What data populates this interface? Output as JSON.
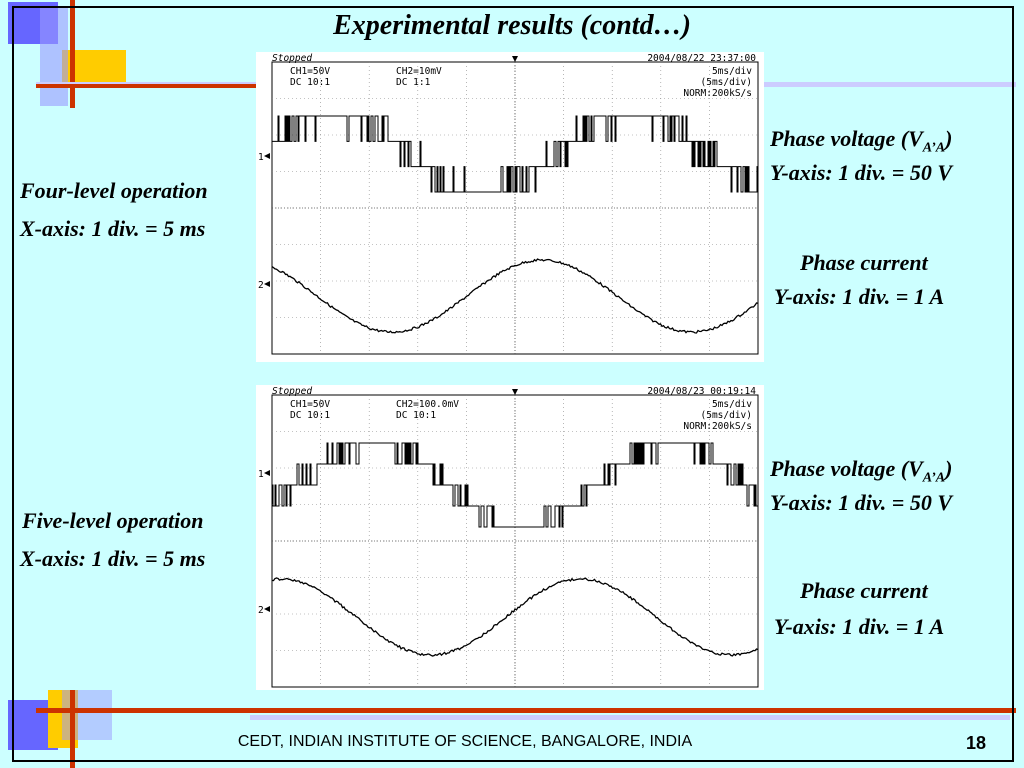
{
  "slide": {
    "title": "Experimental results (contd…)",
    "footer": "CEDT, INDIAN INSTITUTE OF SCIENCE, BANGALORE, INDIA",
    "page_number": "18",
    "background_color": "#ccffff",
    "accent_colors": {
      "blue": "#6666ff",
      "yellow": "#ffcc00",
      "red_line": "#cc3300"
    }
  },
  "panels": [
    {
      "operation_label": "Four-level operation",
      "x_axis_label": "X-axis: 1 div. = 5 ms",
      "voltage_label_prefix": "Phase voltage (V",
      "voltage_label_sub": "A’A",
      "voltage_label_suffix": ")",
      "voltage_scale": "Y-axis: 1 div. = 50 V",
      "current_label": "Phase current",
      "current_scale": "Y-axis: 1 div. = 1 A",
      "scope": {
        "status": "Stopped",
        "datetime": "2004/08/22  23:37:00",
        "ch1": "CH1=50V",
        "ch1_coupling": "DC  10:1",
        "ch2": "CH2=10mV",
        "ch2_coupling": "DC  1:1",
        "timebase": "5ms/div",
        "timebase2": "(5ms/div)",
        "mode": "NORM:200kS/s",
        "ch1_marker": "1",
        "ch2_marker": "2"
      }
    },
    {
      "operation_label": "Five-level operation",
      "x_axis_label": "X-axis: 1 div. = 5 ms",
      "voltage_label_prefix": "Phase voltage (V",
      "voltage_label_sub": "A’A",
      "voltage_label_suffix": ")",
      "voltage_scale": "Y-axis: 1 div. = 50 V",
      "current_label": "Phase current",
      "current_scale": "Y-axis: 1 div. = 1 A",
      "scope": {
        "status": "Stopped",
        "datetime": "2004/08/23  00:19:14",
        "ch1": "CH1=50V",
        "ch1_coupling": "DC  10:1",
        "ch2": "CH2=100.0mV",
        "ch2_coupling": "DC  10:1",
        "timebase": "5ms/div",
        "timebase2": "(5ms/div)",
        "mode": "NORM:200kS/s",
        "ch1_marker": "1",
        "ch2_marker": "2"
      }
    }
  ]
}
